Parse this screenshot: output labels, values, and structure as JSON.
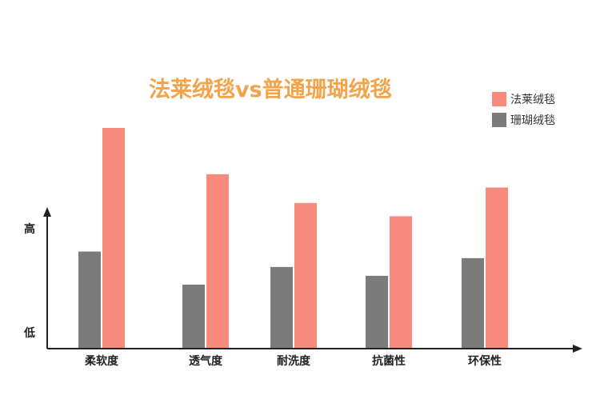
{
  "colors": {
    "flannel": "#f98a7e",
    "coral": "#7b7b7b",
    "title": "#f2a44a",
    "axis": "#222222"
  },
  "chart_data": {
    "type": "bar",
    "title": "法莱绒毯vs普通珊瑚绒毯",
    "categories": [
      "柔软度",
      "透气度",
      "耐洗度",
      "抗菌性",
      "环保性"
    ],
    "series": [
      {
        "name": "珊瑚绒毯",
        "values": [
          4.4,
          2.9,
          3.7,
          3.3,
          4.1
        ]
      },
      {
        "name": "法莱绒毯",
        "values": [
          10.0,
          7.9,
          6.6,
          6.0,
          7.3
        ]
      }
    ],
    "y_axis_labels": {
      "high": "高",
      "low": "低"
    },
    "ylim": [
      0,
      10.5
    ],
    "legend": "top-right",
    "grid": false
  }
}
